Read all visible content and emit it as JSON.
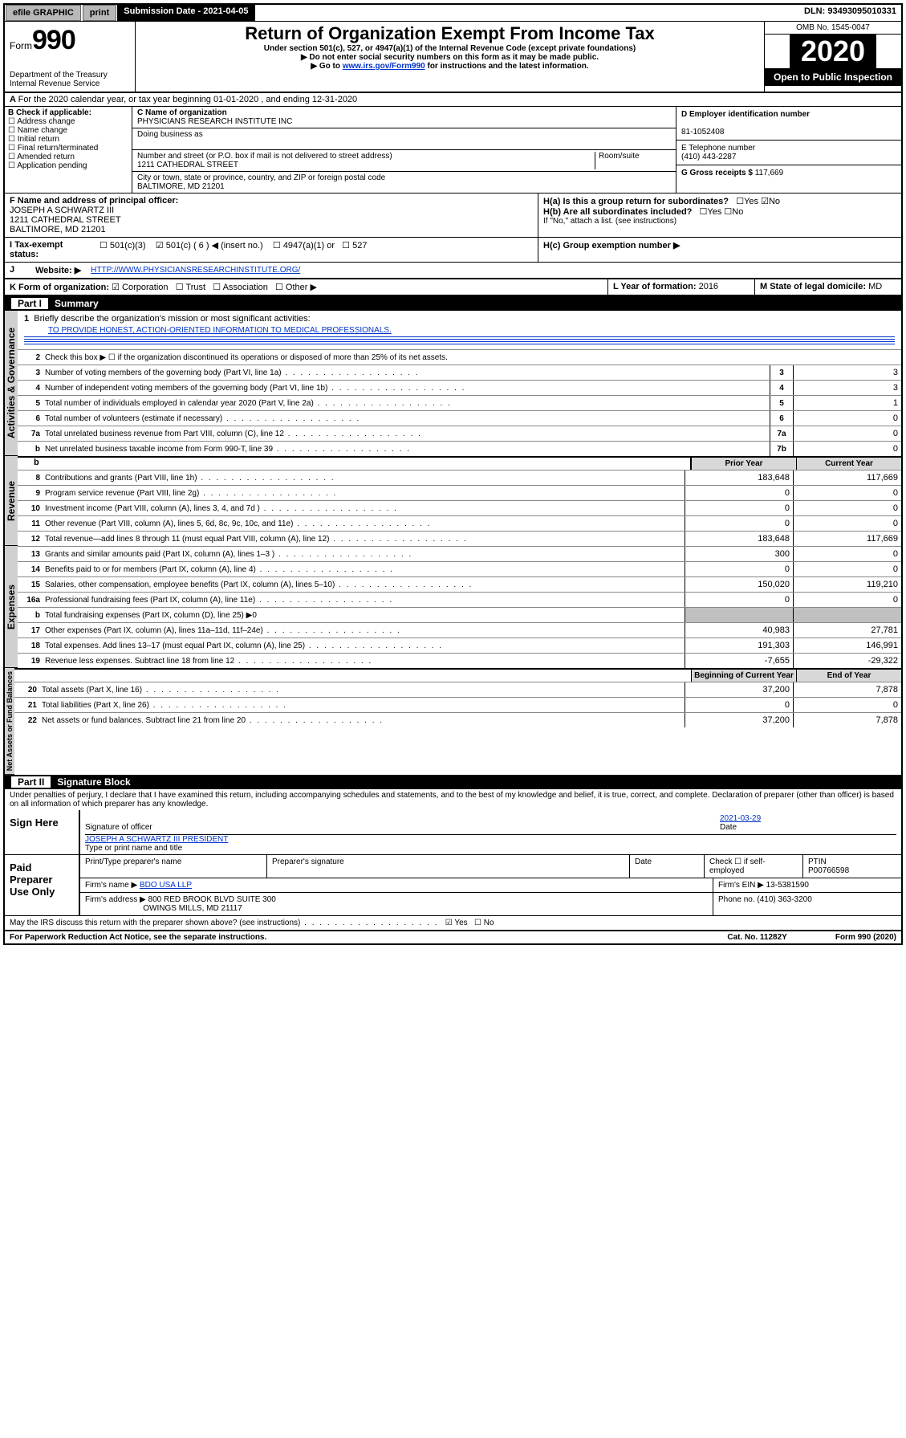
{
  "topbar": {
    "efile": "efile GRAPHIC",
    "print": "print",
    "sub_label": "Submission Date - 2021-04-05",
    "dln": "DLN: 93493095010331"
  },
  "header": {
    "form_word": "Form",
    "form_num": "990",
    "dept": "Department of the Treasury",
    "irs": "Internal Revenue Service",
    "title": "Return of Organization Exempt From Income Tax",
    "sub1": "Under section 501(c), 527, or 4947(a)(1) of the Internal Revenue Code (except private foundations)",
    "sub2": "▶ Do not enter social security numbers on this form as it may be made public.",
    "sub3_pre": "▶ Go to ",
    "sub3_link": "www.irs.gov/Form990",
    "sub3_post": " for instructions and the latest information.",
    "omb": "OMB No. 1545-0047",
    "year": "2020",
    "badge": "Open to Public Inspection"
  },
  "row_a": "For the 2020 calendar year, or tax year beginning 01-01-2020    , and ending 12-31-2020",
  "box_b": {
    "label": "B Check if applicable:",
    "items": [
      "Address change",
      "Name change",
      "Initial return",
      "Final return/terminated",
      "Amended return",
      "Application pending"
    ]
  },
  "box_c": {
    "name_label": "C Name of organization",
    "name": "PHYSICIANS RESEARCH INSTITUTE INC",
    "dba_label": "Doing business as",
    "addr_label": "Number and street (or P.O. box if mail is not delivered to street address)",
    "room_label": "Room/suite",
    "addr": "1211 CATHEDRAL STREET",
    "city_label": "City or town, state or province, country, and ZIP or foreign postal code",
    "city": "BALTIMORE, MD  21201"
  },
  "box_d": {
    "label": "D Employer identification number",
    "val": "81-1052408"
  },
  "box_e": {
    "label": "E Telephone number",
    "val": "(410) 443-2287"
  },
  "box_g": {
    "label": "G Gross receipts $",
    "val": "117,669"
  },
  "box_f": {
    "label": "F  Name and address of principal officer:",
    "name": "JOSEPH A SCHWARTZ III",
    "addr1": "1211 CATHEDRAL STREET",
    "addr2": "BALTIMORE, MD  21201"
  },
  "box_h": {
    "a": "H(a)  Is this a group return for subordinates?",
    "b": "H(b)  Are all subordinates included?",
    "b_note": "If \"No,\" attach a list. (see instructions)",
    "c": "H(c)  Group exemption number ▶",
    "yes": "Yes",
    "no": "No"
  },
  "row_i": {
    "label": "Tax-exempt status:",
    "o1": "501(c)(3)",
    "o2": "501(c) ( 6 ) ◀ (insert no.)",
    "o3": "4947(a)(1) or",
    "o4": "527"
  },
  "row_j": {
    "label": "J",
    "web": "Website: ▶",
    "url": "HTTP://WWW.PHYSICIANSRESEARCHINSTITUTE.ORG/"
  },
  "row_k": {
    "label": "K Form of organization:",
    "corp": "Corporation",
    "trust": "Trust",
    "assoc": "Association",
    "other": "Other ▶"
  },
  "row_l": {
    "label": "L Year of formation:",
    "val": "2016"
  },
  "row_m": {
    "label": "M State of legal domicile:",
    "val": "MD"
  },
  "part1": {
    "hdr": "Part I",
    "title": "Summary",
    "q1": "Briefly describe the organization's mission or most significant activities:",
    "mission": "TO PROVIDE HONEST, ACTION-ORIENTED INFORMATION TO MEDICAL PROFESSIONALS.",
    "q2": "Check this box ▶ ☐  if the organization discontinued its operations or disposed of more than 25% of its net assets.",
    "lines_gov": [
      {
        "n": "3",
        "t": "Number of voting members of the governing body (Part VI, line 1a)",
        "box": "3",
        "v": "3"
      },
      {
        "n": "4",
        "t": "Number of independent voting members of the governing body (Part VI, line 1b)",
        "box": "4",
        "v": "3"
      },
      {
        "n": "5",
        "t": "Total number of individuals employed in calendar year 2020 (Part V, line 2a)",
        "box": "5",
        "v": "1"
      },
      {
        "n": "6",
        "t": "Total number of volunteers (estimate if necessary)",
        "box": "6",
        "v": "0"
      },
      {
        "n": "7a",
        "t": "Total unrelated business revenue from Part VIII, column (C), line 12",
        "box": "7a",
        "v": "0"
      },
      {
        "n": "b",
        "t": "Net unrelated business taxable income from Form 990-T, line 39",
        "box": "7b",
        "v": "0"
      }
    ],
    "col_prior": "Prior Year",
    "col_curr": "Current Year",
    "col_begin": "Beginning of Current Year",
    "col_end": "End of Year",
    "lines_rev": [
      {
        "n": "8",
        "t": "Contributions and grants (Part VIII, line 1h)",
        "p": "183,648",
        "c": "117,669"
      },
      {
        "n": "9",
        "t": "Program service revenue (Part VIII, line 2g)",
        "p": "0",
        "c": "0"
      },
      {
        "n": "10",
        "t": "Investment income (Part VIII, column (A), lines 3, 4, and 7d )",
        "p": "0",
        "c": "0"
      },
      {
        "n": "11",
        "t": "Other revenue (Part VIII, column (A), lines 5, 6d, 8c, 9c, 10c, and 11e)",
        "p": "0",
        "c": "0"
      },
      {
        "n": "12",
        "t": "Total revenue—add lines 8 through 11 (must equal Part VIII, column (A), line 12)",
        "p": "183,648",
        "c": "117,669"
      }
    ],
    "lines_exp": [
      {
        "n": "13",
        "t": "Grants and similar amounts paid (Part IX, column (A), lines 1–3 )",
        "p": "300",
        "c": "0"
      },
      {
        "n": "14",
        "t": "Benefits paid to or for members (Part IX, column (A), line 4)",
        "p": "0",
        "c": "0"
      },
      {
        "n": "15",
        "t": "Salaries, other compensation, employee benefits (Part IX, column (A), lines 5–10)",
        "p": "150,020",
        "c": "119,210"
      },
      {
        "n": "16a",
        "t": "Professional fundraising fees (Part IX, column (A), line 11e)",
        "p": "0",
        "c": "0"
      },
      {
        "n": "b",
        "t": "Total fundraising expenses (Part IX, column (D), line 25) ▶0",
        "shade": true
      },
      {
        "n": "17",
        "t": "Other expenses (Part IX, column (A), lines 11a–11d, 11f–24e)",
        "p": "40,983",
        "c": "27,781"
      },
      {
        "n": "18",
        "t": "Total expenses. Add lines 13–17 (must equal Part IX, column (A), line 25)",
        "p": "191,303",
        "c": "146,991"
      },
      {
        "n": "19",
        "t": "Revenue less expenses. Subtract line 18 from line 12",
        "p": "-7,655",
        "c": "-29,322"
      }
    ],
    "lines_net": [
      {
        "n": "20",
        "t": "Total assets (Part X, line 16)",
        "p": "37,200",
        "c": "7,878"
      },
      {
        "n": "21",
        "t": "Total liabilities (Part X, line 26)",
        "p": "0",
        "c": "0"
      },
      {
        "n": "22",
        "t": "Net assets or fund balances. Subtract line 21 from line 20",
        "p": "37,200",
        "c": "7,878"
      }
    ],
    "tab_gov": "Activities & Governance",
    "tab_rev": "Revenue",
    "tab_exp": "Expenses",
    "tab_net": "Net Assets or Fund Balances"
  },
  "part2": {
    "hdr": "Part II",
    "title": "Signature Block",
    "decl": "Under penalties of perjury, I declare that I have examined this return, including accompanying schedules and statements, and to the best of my knowledge and belief, it is true, correct, and complete. Declaration of preparer (other than officer) is based on all information of which preparer has any knowledge.",
    "sign_here": "Sign Here",
    "sig_of_officer": "Signature of officer",
    "date_label": "Date",
    "date": "2021-03-29",
    "officer": "JOSEPH A SCHWARTZ III  PRESIDENT",
    "type_name": "Type or print name and title",
    "paid": "Paid Preparer Use Only",
    "pp_h1": "Print/Type preparer's name",
    "pp_h2": "Preparer's signature",
    "pp_h3": "Date",
    "pp_h4": "Check ☐ if self-employed",
    "pp_h5": "PTIN",
    "ptin": "P00766598",
    "firm_name_l": "Firm's name    ▶",
    "firm_name": "BDO USA LLP",
    "firm_ein_l": "Firm's EIN ▶",
    "firm_ein": "13-5381590",
    "firm_addr_l": "Firm's address ▶",
    "firm_addr": "800 RED BROOK BLVD SUITE 300",
    "firm_city": "OWINGS MILLS, MD  21117",
    "phone_l": "Phone no.",
    "phone": "(410) 363-3200",
    "discuss": "May the IRS discuss this return with the preparer shown above? (see instructions)",
    "yes": "Yes",
    "no": "No"
  },
  "footer": {
    "pra": "For Paperwork Reduction Act Notice, see the separate instructions.",
    "cat": "Cat. No. 11282Y",
    "form": "Form 990 (2020)"
  }
}
